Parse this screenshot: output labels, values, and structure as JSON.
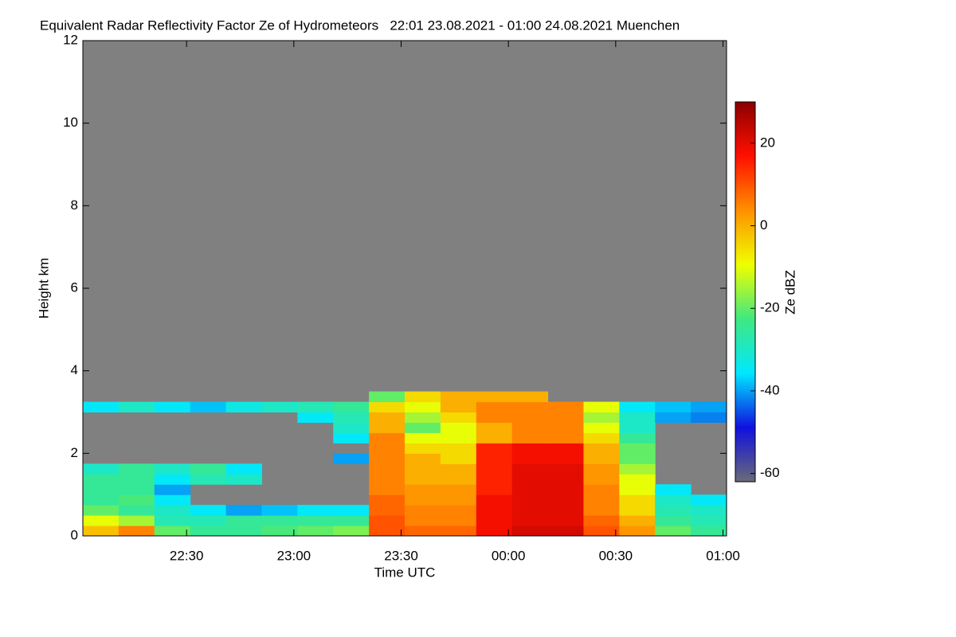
{
  "chart_data": {
    "type": "heatmap",
    "title": "Equivalent Radar Reflectivity Factor Ze of Hydrometeors   22:01 23.08.2021 - 01:00 24.08.2021 Muenchen",
    "xlabel": "Time UTC",
    "ylabel": "Height km",
    "colorbar_label": "Ze dBZ",
    "background_color": "#808080",
    "colormap": [
      "#6a6a78",
      "#1010e0",
      "#00e8ff",
      "#40e880",
      "#f0ff00",
      "#ff9000",
      "#ff1000",
      "#8b0000"
    ],
    "xlim": [
      1321,
      1501
    ],
    "xticks": [
      {
        "value": 1350,
        "label": "22:30"
      },
      {
        "value": 1380,
        "label": "23:00"
      },
      {
        "value": 1410,
        "label": "23:30"
      },
      {
        "value": 1440,
        "label": "00:00"
      },
      {
        "value": 1470,
        "label": "00:30"
      },
      {
        "value": 1500,
        "label": "01:00"
      }
    ],
    "ylim": [
      0,
      12
    ],
    "yticks": [
      0,
      2,
      4,
      6,
      8,
      10,
      12
    ],
    "clim": [
      -62,
      30
    ],
    "cticks": [
      -60,
      -40,
      -20,
      0,
      20
    ],
    "x_edges": [
      1321,
      1331,
      1341,
      1351,
      1361,
      1371,
      1381,
      1391,
      1401,
      1411,
      1421,
      1431,
      1441,
      1451,
      1461,
      1471,
      1481,
      1491,
      1501
    ],
    "y_edges": [
      0,
      0.25,
      0.5,
      0.75,
      1,
      1.25,
      1.5,
      1.75,
      2,
      2.25,
      2.5,
      2.75,
      3,
      3.25,
      3.5
    ],
    "z": [
      [
        -2,
        5,
        -20,
        -25,
        -25,
        -22,
        -20,
        -18,
        10,
        8,
        8,
        18,
        22,
        22,
        10,
        3,
        -20,
        -25
      ],
      [
        -10,
        -15,
        -28,
        -28,
        -25,
        -25,
        -25,
        -25,
        10,
        5,
        5,
        18,
        20,
        20,
        8,
        0,
        -25,
        -28
      ],
      [
        -20,
        -25,
        -30,
        -35,
        -40,
        -38,
        -35,
        -35,
        8,
        5,
        5,
        18,
        20,
        20,
        5,
        -5,
        -28,
        -30
      ],
      [
        -25,
        -22,
        -35,
        null,
        null,
        null,
        null,
        null,
        8,
        3,
        3,
        18,
        20,
        20,
        5,
        -5,
        -30,
        -35
      ],
      [
        -25,
        -25,
        -40,
        null,
        null,
        null,
        null,
        null,
        5,
        3,
        3,
        15,
        20,
        20,
        5,
        -10,
        -35,
        null
      ],
      [
        -25,
        -25,
        -35,
        -28,
        -30,
        null,
        null,
        null,
        5,
        0,
        0,
        15,
        20,
        20,
        3,
        -10,
        null,
        null
      ],
      [
        -30,
        -25,
        -30,
        -25,
        -35,
        null,
        null,
        null,
        5,
        0,
        0,
        15,
        20,
        20,
        3,
        -15,
        null,
        null
      ],
      [
        null,
        null,
        null,
        null,
        null,
        null,
        null,
        -40,
        5,
        0,
        -5,
        15,
        18,
        18,
        0,
        -20,
        null,
        null
      ],
      [
        null,
        null,
        null,
        null,
        null,
        null,
        null,
        null,
        5,
        -5,
        -5,
        15,
        18,
        18,
        0,
        -20,
        null,
        null
      ],
      [
        null,
        null,
        null,
        null,
        null,
        null,
        null,
        -35,
        5,
        -10,
        -10,
        0,
        5,
        5,
        -5,
        -25,
        null,
        null
      ],
      [
        null,
        null,
        null,
        null,
        null,
        null,
        null,
        -30,
        0,
        -20,
        -10,
        0,
        5,
        5,
        -10,
        -30,
        null,
        null
      ],
      [
        null,
        null,
        null,
        null,
        null,
        null,
        -35,
        -28,
        0,
        -15,
        -5,
        5,
        5,
        5,
        -15,
        -30,
        -40,
        -42
      ],
      [
        -35,
        -30,
        -35,
        -38,
        -33,
        -30,
        -28,
        -25,
        -5,
        -10,
        0,
        5,
        5,
        5,
        -10,
        -35,
        -38,
        -40
      ],
      [
        null,
        null,
        null,
        null,
        null,
        null,
        null,
        null,
        -20,
        -5,
        0,
        0,
        0,
        null,
        null,
        null,
        null,
        null
      ]
    ]
  }
}
